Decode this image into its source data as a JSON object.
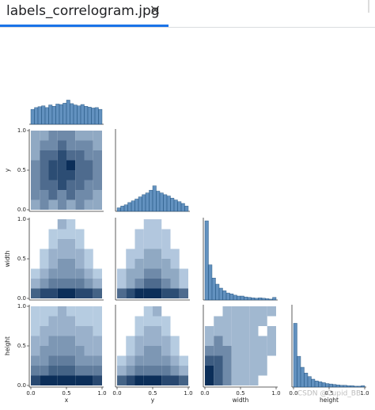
{
  "tab": {
    "title": "labels_correlogram.jpg",
    "close": "×"
  },
  "chart_data": {
    "type": "pairgrid",
    "variables": [
      "x",
      "y",
      "width",
      "height"
    ],
    "xlim": [
      0,
      1
    ],
    "ylim": [
      0,
      1
    ],
    "ticks": [
      {
        "value": 0,
        "label": "0.0"
      },
      {
        "value": 0.5,
        "label": "0.5"
      },
      {
        "value": 1,
        "label": "1.0"
      }
    ],
    "hist_color": "#3b75af",
    "hist_edge": "#1f4e79",
    "color_low": "#d3e6f8",
    "color_high": "#0b2e59",
    "bins": [
      0,
      0.05,
      0.1,
      0.15,
      0.2,
      0.25,
      0.3,
      0.35,
      0.4,
      0.45,
      0.5,
      0.55,
      0.6,
      0.65,
      0.7,
      0.75,
      0.8,
      0.85,
      0.9,
      0.95,
      1
    ],
    "diagonal": [
      [
        34,
        38,
        40,
        42,
        38,
        44,
        41,
        46,
        45,
        48,
        55,
        47,
        44,
        42,
        45,
        41,
        39,
        37,
        38,
        34
      ],
      [
        8,
        12,
        15,
        20,
        24,
        28,
        33,
        38,
        42,
        48,
        58,
        46,
        42,
        38,
        35,
        30,
        26,
        22,
        18,
        12
      ],
      [
        180,
        80,
        50,
        36,
        27,
        21,
        16,
        14,
        11,
        9,
        9,
        7,
        6,
        5,
        4,
        5,
        4,
        3,
        2,
        6
      ],
      [
        145,
        70,
        45,
        32,
        24,
        18,
        14,
        12,
        10,
        8,
        7,
        6,
        5,
        4,
        4,
        3,
        3,
        2,
        2,
        3
      ]
    ],
    "grid_edges": [
      0,
      0.125,
      0.25,
      0.375,
      0.5,
      0.625,
      0.75,
      0.875,
      1
    ],
    "pairs": [
      [
        [
          2,
          3,
          2,
          3,
          2,
          3,
          2,
          2
        ],
        [
          3,
          3,
          4,
          3,
          4,
          3,
          3,
          2
        ],
        [
          3,
          4,
          4,
          5,
          4,
          4,
          3,
          3
        ],
        [
          3,
          4,
          5,
          5,
          5,
          4,
          4,
          3
        ],
        [
          3,
          4,
          5,
          5,
          6,
          4,
          4,
          3
        ],
        [
          2,
          4,
          4,
          5,
          4,
          4,
          3,
          3
        ],
        [
          2,
          3,
          3,
          4,
          3,
          3,
          3,
          2
        ],
        [
          2,
          2,
          3,
          3,
          3,
          2,
          2,
          2
        ]
      ],
      [
        [
          5,
          6,
          6,
          7,
          7,
          6,
          6,
          5
        ],
        [
          2,
          3,
          4,
          4,
          4,
          4,
          3,
          2
        ],
        [
          1,
          2,
          3,
          3,
          3,
          3,
          2,
          1
        ],
        [
          0,
          1,
          2,
          3,
          3,
          2,
          1,
          0
        ],
        [
          0,
          1,
          2,
          2,
          2,
          2,
          1,
          0
        ],
        [
          0,
          0,
          1,
          2,
          2,
          1,
          0,
          0
        ],
        [
          0,
          0,
          1,
          1,
          1,
          1,
          0,
          0
        ],
        [
          0,
          0,
          0,
          2,
          1,
          0,
          0,
          0
        ]
      ],
      [
        [
          4,
          5,
          6,
          6,
          6,
          5,
          5,
          4
        ],
        [
          1,
          2,
          3,
          4,
          4,
          3,
          2,
          1
        ],
        [
          1,
          2,
          2,
          3,
          3,
          2,
          2,
          1
        ],
        [
          0,
          1,
          2,
          2,
          2,
          2,
          1,
          0
        ],
        [
          0,
          1,
          1,
          2,
          2,
          1,
          1,
          0
        ],
        [
          0,
          0,
          1,
          1,
          1,
          1,
          0,
          0
        ],
        [
          0,
          0,
          1,
          1,
          1,
          1,
          0,
          0
        ],
        [
          0,
          0,
          0,
          1,
          1,
          0,
          0,
          0
        ]
      ],
      [
        [
          6,
          7,
          7,
          7,
          7,
          7,
          7,
          6
        ],
        [
          4,
          4,
          5,
          5,
          5,
          4,
          4,
          4
        ],
        [
          3,
          3,
          4,
          4,
          4,
          3,
          3,
          3
        ],
        [
          2,
          3,
          3,
          3,
          3,
          3,
          2,
          2
        ],
        [
          2,
          2,
          3,
          3,
          3,
          2,
          2,
          2
        ],
        [
          1,
          2,
          2,
          2,
          2,
          2,
          2,
          1
        ],
        [
          1,
          1,
          2,
          2,
          2,
          1,
          1,
          1
        ],
        [
          1,
          1,
          1,
          2,
          1,
          1,
          1,
          1
        ]
      ],
      [
        [
          5,
          6,
          7,
          7,
          7,
          6,
          6,
          5
        ],
        [
          2,
          3,
          4,
          4,
          4,
          4,
          3,
          2
        ],
        [
          1,
          2,
          3,
          3,
          3,
          3,
          2,
          1
        ],
        [
          0,
          1,
          2,
          3,
          3,
          2,
          1,
          0
        ],
        [
          0,
          1,
          2,
          2,
          2,
          2,
          1,
          0
        ],
        [
          0,
          0,
          1,
          2,
          2,
          1,
          0,
          0
        ],
        [
          0,
          0,
          1,
          1,
          1,
          1,
          0,
          0
        ],
        [
          0,
          0,
          0,
          1,
          2,
          0,
          0,
          0
        ]
      ],
      [
        [
          4,
          3,
          2,
          1,
          1,
          1,
          0,
          0
        ],
        [
          4,
          3,
          2,
          1,
          1,
          1,
          1,
          0
        ],
        [
          3,
          3,
          2,
          1,
          1,
          1,
          1,
          0
        ],
        [
          2,
          2,
          2,
          1,
          1,
          1,
          1,
          1
        ],
        [
          1,
          2,
          1,
          1,
          1,
          1,
          1,
          1
        ],
        [
          1,
          1,
          1,
          1,
          1,
          1,
          0,
          1
        ],
        [
          0,
          1,
          1,
          1,
          1,
          1,
          1,
          0
        ],
        [
          0,
          0,
          1,
          1,
          1,
          1,
          1,
          1
        ]
      ]
    ]
  },
  "watermark": "CSDN @Cupid_BB"
}
